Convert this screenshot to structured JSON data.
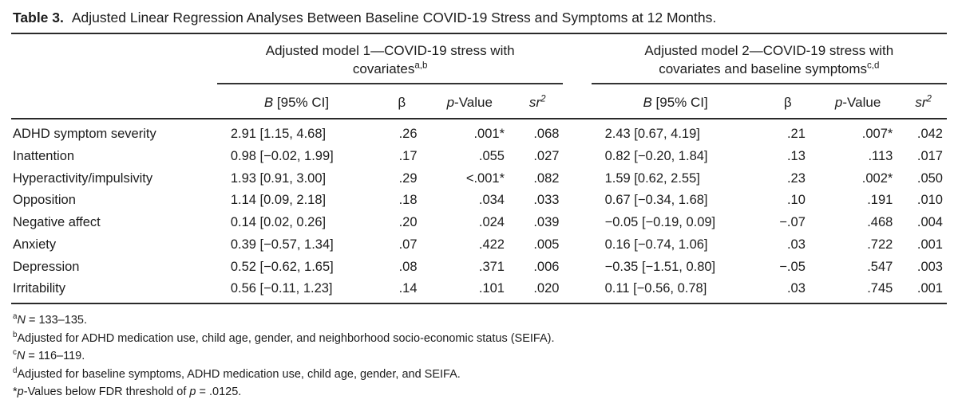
{
  "page": {
    "title_label": "Table 3.",
    "title_text": "Adjusted Linear Regression Analyses Between Baseline COVID-19 Stress and Symptoms at 12 Months."
  },
  "table": {
    "spanners": [
      {
        "line1": "Adjusted model 1—COVID-19 stress with",
        "line2": "covariates",
        "sup": "a,b"
      },
      {
        "line1": "Adjusted model 2—COVID-19 stress with",
        "line2": "covariates and baseline symptoms",
        "sup": "c,d"
      }
    ],
    "colheads": {
      "b_italic": "B",
      "b_rest": " [95% CI]",
      "beta": "β",
      "p_italic": "p",
      "p_rest": "-Value",
      "sr_italic": "sr",
      "sr_sup": "2"
    },
    "rows": [
      {
        "label": "ADHD symptom severity",
        "m1": {
          "b": "2.91 [1.15, 4.68]",
          "beta": ".26",
          "p": ".001*",
          "sr2": ".068"
        },
        "m2": {
          "b": "2.43 [0.67, 4.19]",
          "beta": ".21",
          "p": ".007*",
          "sr2": ".042"
        }
      },
      {
        "label": "Inattention",
        "m1": {
          "b": "0.98 [−0.02, 1.99]",
          "beta": ".17",
          "p": ".055",
          "sr2": ".027"
        },
        "m2": {
          "b": "0.82 [−0.20, 1.84]",
          "beta": ".13",
          "p": ".113",
          "sr2": ".017"
        }
      },
      {
        "label": "Hyperactivity/impulsivity",
        "m1": {
          "b": "1.93 [0.91, 3.00]",
          "beta": ".29",
          "p": "<.001*",
          "sr2": ".082"
        },
        "m2": {
          "b": "1.59 [0.62, 2.55]",
          "beta": ".23",
          "p": ".002*",
          "sr2": ".050"
        }
      },
      {
        "label": "Opposition",
        "m1": {
          "b": "1.14 [0.09, 2.18]",
          "beta": ".18",
          "p": ".034",
          "sr2": ".033"
        },
        "m2": {
          "b": "0.67 [−0.34, 1.68]",
          "beta": ".10",
          "p": ".191",
          "sr2": ".010"
        }
      },
      {
        "label": "Negative affect",
        "m1": {
          "b": "0.14 [0.02, 0.26]",
          "beta": ".20",
          "p": ".024",
          "sr2": ".039"
        },
        "m2": {
          "b": "−0.05 [−0.19, 0.09]",
          "beta": "−.07",
          "p": ".468",
          "sr2": ".004"
        }
      },
      {
        "label": "Anxiety",
        "m1": {
          "b": "0.39 [−0.57, 1.34]",
          "beta": ".07",
          "p": ".422",
          "sr2": ".005"
        },
        "m2": {
          "b": "0.16 [−0.74, 1.06]",
          "beta": ".03",
          "p": ".722",
          "sr2": ".001"
        }
      },
      {
        "label": "Depression",
        "m1": {
          "b": "0.52 [−0.62, 1.65]",
          "beta": ".08",
          "p": ".371",
          "sr2": ".006"
        },
        "m2": {
          "b": "−0.35 [−1.51, 0.80]",
          "beta": "−.05",
          "p": ".547",
          "sr2": ".003"
        }
      },
      {
        "label": "Irritability",
        "m1": {
          "b": "0.56 [−0.11, 1.23]",
          "beta": ".14",
          "p": ".101",
          "sr2": ".020"
        },
        "m2": {
          "b": "0.11 [−0.56, 0.78]",
          "beta": ".03",
          "p": ".745",
          "sr2": ".001"
        }
      }
    ]
  },
  "footnotes": [
    [
      {
        "t": "a",
        "s": "sup"
      },
      {
        "t": "N",
        "s": "i"
      },
      {
        "t": " = 133–135.",
        "s": ""
      }
    ],
    [
      {
        "t": "b",
        "s": "sup"
      },
      {
        "t": "Adjusted for ADHD medication use, child age, gender, and neighborhood socio-economic status (SEIFA).",
        "s": ""
      }
    ],
    [
      {
        "t": "c",
        "s": "sup"
      },
      {
        "t": "N",
        "s": "i"
      },
      {
        "t": " = 116–119.",
        "s": ""
      }
    ],
    [
      {
        "t": "d",
        "s": "sup"
      },
      {
        "t": "Adjusted for baseline symptoms, ADHD medication use, child age, gender, and SEIFA.",
        "s": ""
      }
    ],
    [
      {
        "t": "*",
        "s": ""
      },
      {
        "t": "p",
        "s": "i"
      },
      {
        "t": "-Values below FDR threshold of ",
        "s": ""
      },
      {
        "t": "p",
        "s": "i"
      },
      {
        "t": " = .0125.",
        "s": ""
      }
    ]
  ],
  "colors": {
    "text": "#1c1c1c",
    "rule": "#2a2a2a",
    "background": "#ffffff"
  }
}
